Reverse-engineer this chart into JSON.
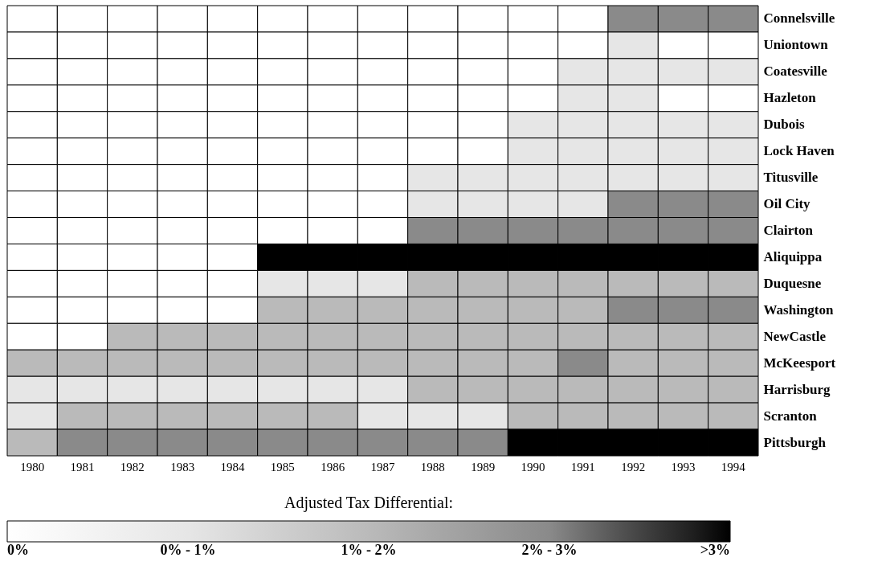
{
  "chart_data": {
    "type": "heatmap",
    "legend_title": "Adjusted Tax Differential:",
    "categories": [
      "1980",
      "1981",
      "1982",
      "1983",
      "1984",
      "1985",
      "1986",
      "1987",
      "1988",
      "1989",
      "1990",
      "1991",
      "1992",
      "1993",
      "1994"
    ],
    "y_categories": [
      "Connelsville",
      "Uniontown",
      "Coatesville",
      "Hazleton",
      "Dubois",
      "Lock Haven",
      "Titusville",
      "Oil City",
      "Clairton",
      "Aliquippa",
      "Duquesne",
      "Washington",
      "NewCastle",
      "McKeesport",
      "Harrisburg",
      "Scranton",
      "Pittsburgh"
    ],
    "cells": [
      [
        0,
        0,
        0,
        0,
        0,
        0,
        0,
        0,
        0,
        0,
        0,
        0,
        3,
        3,
        3
      ],
      [
        0,
        0,
        0,
        0,
        0,
        0,
        0,
        0,
        0,
        0,
        0,
        0,
        1,
        0,
        0
      ],
      [
        0,
        0,
        0,
        0,
        0,
        0,
        0,
        0,
        0,
        0,
        0,
        1,
        1,
        1,
        1
      ],
      [
        0,
        0,
        0,
        0,
        0,
        0,
        0,
        0,
        0,
        0,
        0,
        1,
        1,
        0,
        0
      ],
      [
        0,
        0,
        0,
        0,
        0,
        0,
        0,
        0,
        0,
        0,
        1,
        1,
        1,
        1,
        1
      ],
      [
        0,
        0,
        0,
        0,
        0,
        0,
        0,
        0,
        0,
        0,
        1,
        1,
        1,
        1,
        1
      ],
      [
        0,
        0,
        0,
        0,
        0,
        0,
        0,
        0,
        1,
        1,
        1,
        1,
        1,
        1,
        1
      ],
      [
        0,
        0,
        0,
        0,
        0,
        0,
        0,
        0,
        1,
        1,
        1,
        1,
        3,
        3,
        3
      ],
      [
        0,
        0,
        0,
        0,
        0,
        0,
        0,
        0,
        3,
        3,
        3,
        3,
        3,
        3,
        3
      ],
      [
        0,
        0,
        0,
        0,
        0,
        4,
        4,
        4,
        4,
        4,
        4,
        4,
        4,
        4,
        4
      ],
      [
        0,
        0,
        0,
        0,
        0,
        1,
        1,
        1,
        2,
        2,
        2,
        2,
        2,
        2,
        2
      ],
      [
        0,
        0,
        0,
        0,
        0,
        2,
        2,
        2,
        2,
        2,
        2,
        2,
        3,
        3,
        3
      ],
      [
        0,
        0,
        2,
        2,
        2,
        2,
        2,
        2,
        2,
        2,
        2,
        2,
        2,
        2,
        2
      ],
      [
        2,
        2,
        2,
        2,
        2,
        2,
        2,
        2,
        2,
        2,
        2,
        3,
        2,
        2,
        2
      ],
      [
        1,
        1,
        1,
        1,
        1,
        1,
        1,
        1,
        2,
        2,
        2,
        2,
        2,
        2,
        2
      ],
      [
        1,
        2,
        2,
        2,
        2,
        2,
        2,
        1,
        1,
        1,
        2,
        2,
        2,
        2,
        2
      ],
      [
        2,
        3,
        3,
        3,
        3,
        3,
        3,
        3,
        3,
        3,
        4,
        4,
        4,
        4,
        4
      ]
    ],
    "clim": [
      0,
      4
    ],
    "cticks": [
      {
        "value": 0,
        "label": "0%"
      },
      {
        "value": 1,
        "label": "0% - 1%"
      },
      {
        "value": 2,
        "label": "1% - 2%"
      },
      {
        "value": 3,
        "label": "2% - 3%"
      },
      {
        "value": 4,
        "label": ">3%"
      }
    ]
  }
}
